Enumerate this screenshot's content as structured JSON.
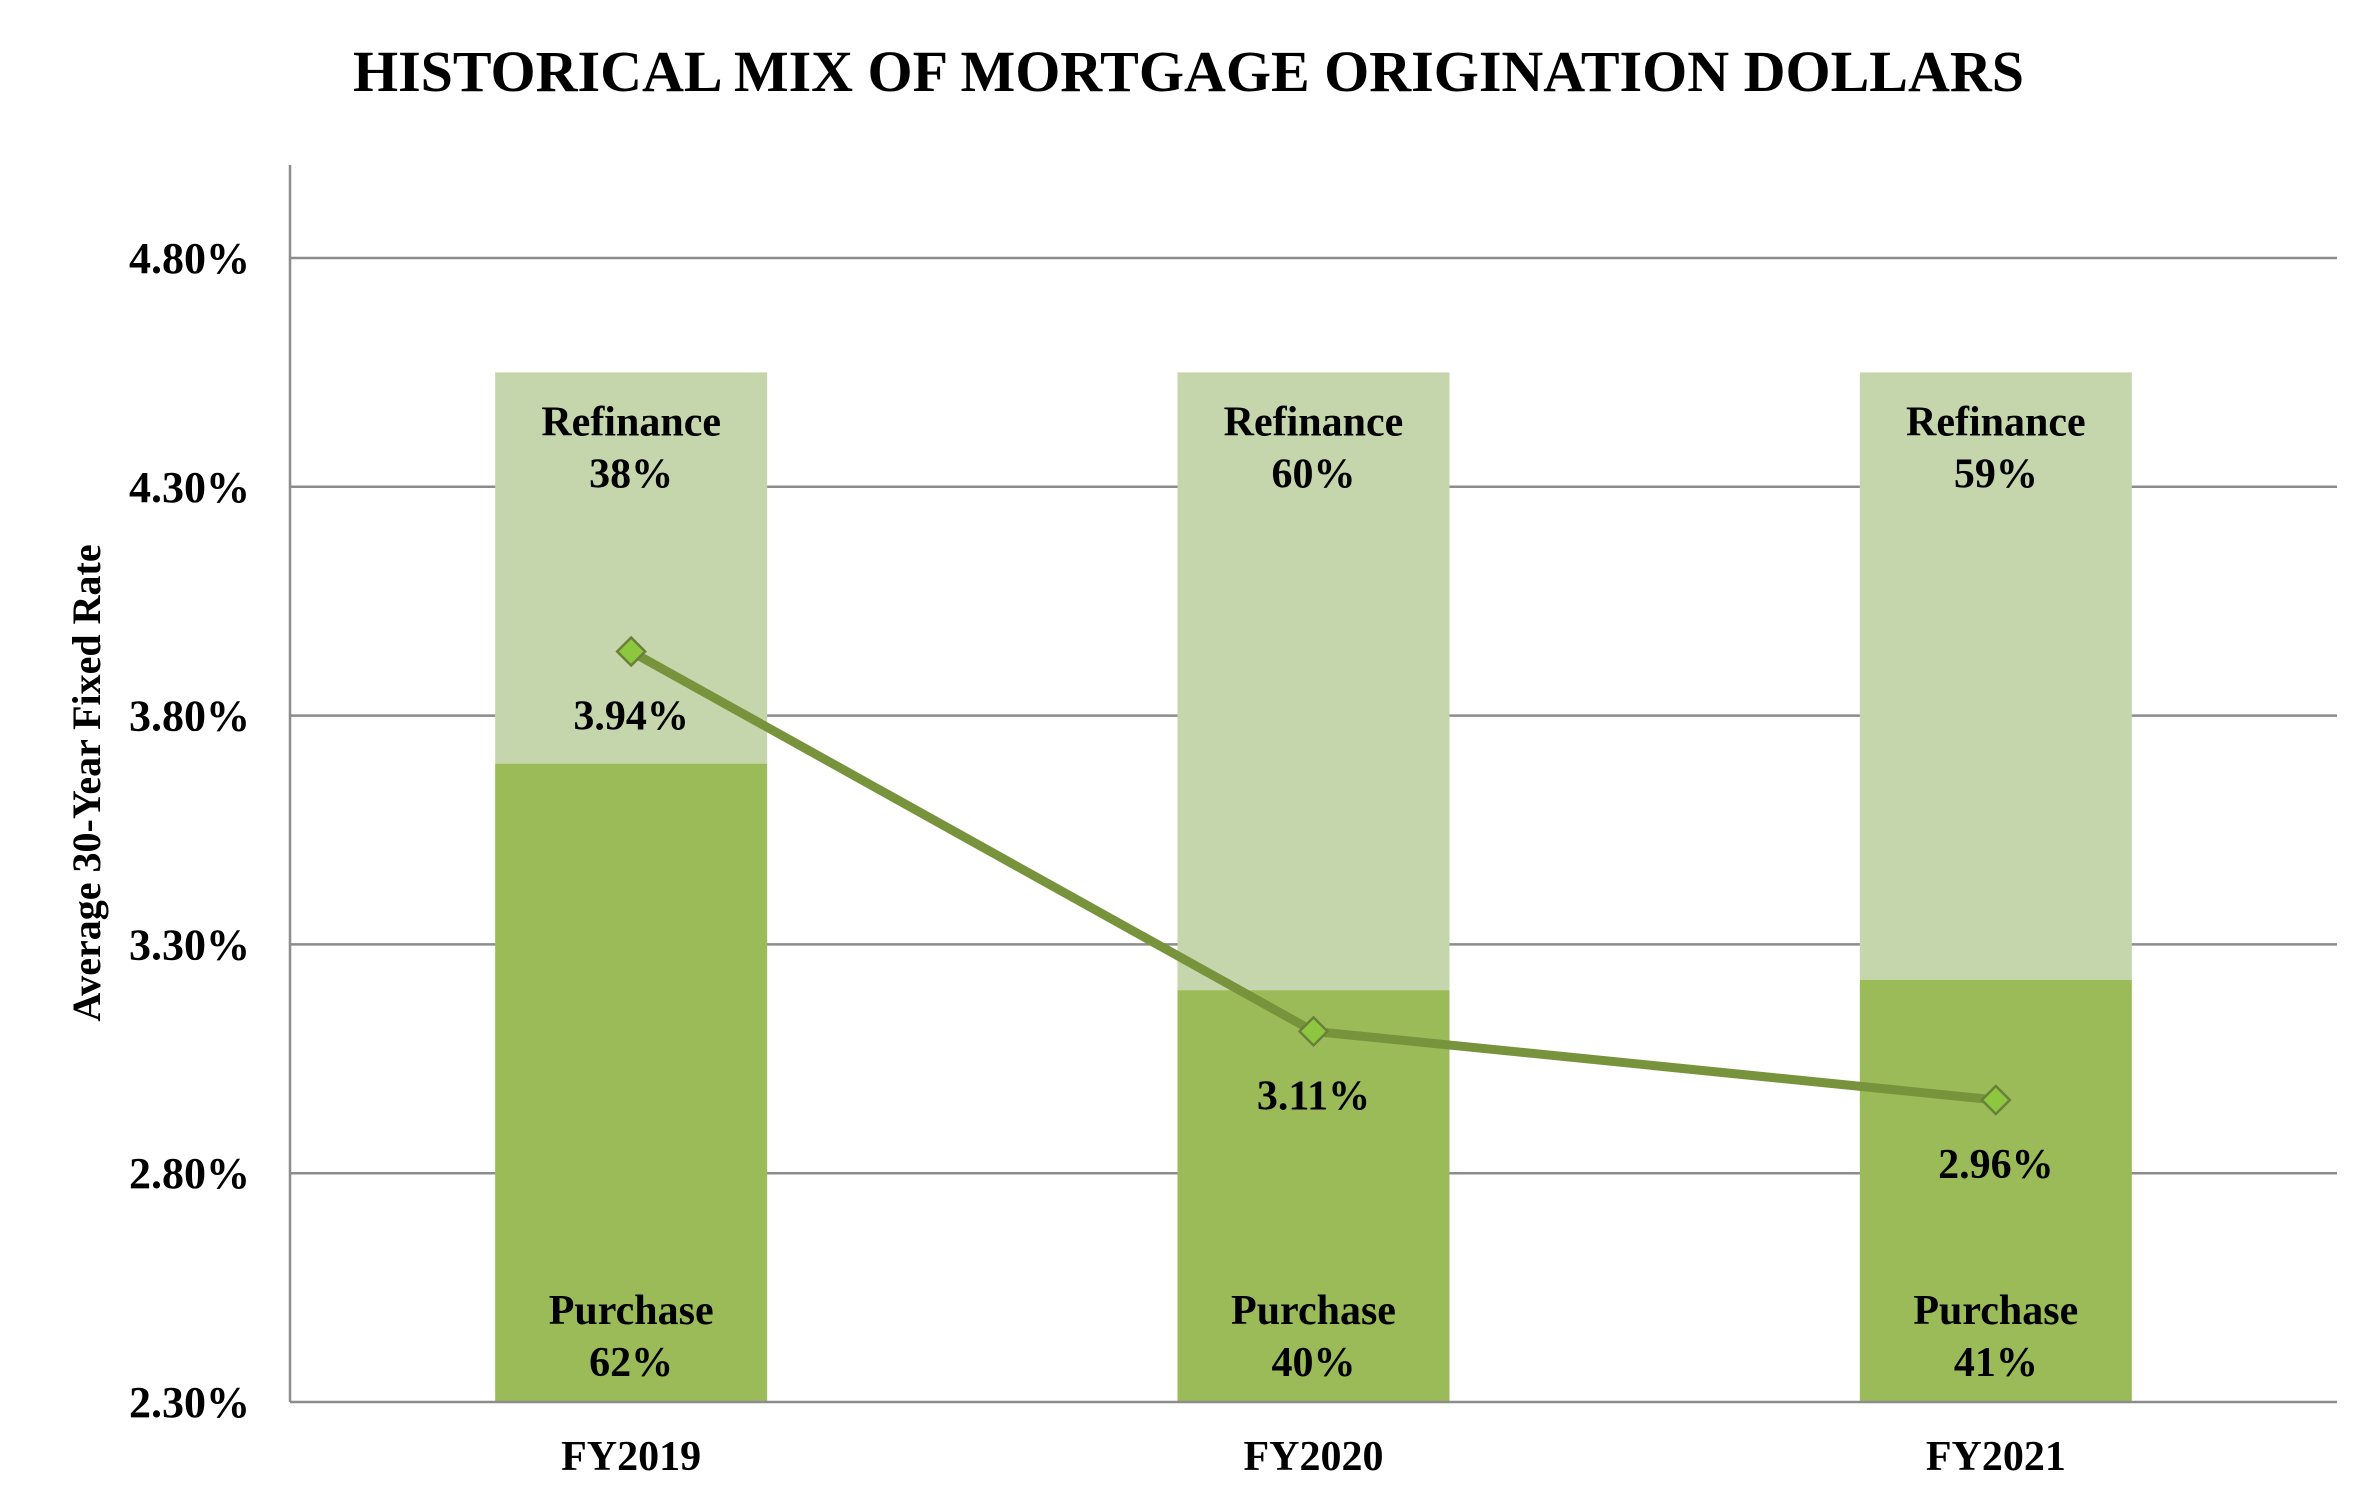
{
  "chart_data": {
    "type": "bar",
    "title": "HISTORICAL MIX OF MORTGAGE ORIGINATION DOLLARS",
    "ylabel": "Average 30-Year Fixed Rate",
    "xlabel": "",
    "categories": [
      "FY2019",
      "FY2020",
      "FY2021"
    ],
    "y_ticks": [
      "2.30%",
      "2.80%",
      "3.30%",
      "3.80%",
      "4.30%",
      "4.80%"
    ],
    "y_tick_values": [
      2.3,
      2.8,
      3.3,
      3.8,
      4.3,
      4.8
    ],
    "ylim": [
      2.3,
      5.0
    ],
    "grid": true,
    "bar_top_value": 4.55,
    "series": [
      {
        "name": "Purchase",
        "kind": "stacked-bar-share",
        "values": [
          62,
          40,
          41
        ],
        "labels": [
          "62%",
          "40%",
          "41%"
        ],
        "color": "#9bbb59"
      },
      {
        "name": "Refinance",
        "kind": "stacked-bar-share",
        "values": [
          38,
          60,
          59
        ],
        "labels": [
          "38%",
          "60%",
          "59%"
        ],
        "color": "#c5d6ac"
      },
      {
        "name": "Average 30-Year Fixed Rate",
        "kind": "line",
        "values": [
          3.94,
          3.11,
          2.96
        ],
        "labels": [
          "3.94%",
          "3.11%",
          "2.96%"
        ],
        "color": "#77933c",
        "marker_color": "#8dc63f"
      }
    ],
    "colors": {
      "gridline": "#8c8c8c",
      "axis": "#8c8c8c"
    }
  }
}
